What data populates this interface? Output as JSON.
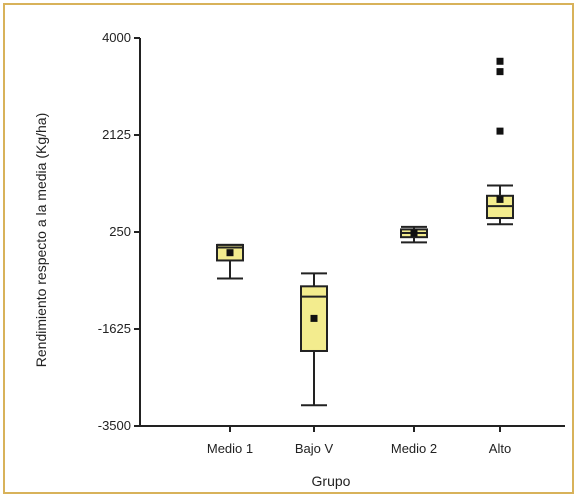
{
  "chart_data": {
    "type": "boxplot",
    "title": "",
    "xlabel": "Grupo",
    "ylabel": "Rendimiento respecto a la media (Kg/ha)",
    "ylim": [
      -3500,
      4000
    ],
    "yticks": [
      4000,
      2125,
      250,
      -1625,
      -3500
    ],
    "ytick_labels": [
      "4000",
      "2125",
      "250",
      "-1625",
      "-3500"
    ],
    "grid": false,
    "legend": "none",
    "box_fill": "#f3ec8e",
    "categories": [
      "Medio 1",
      "Bajo V",
      "Medio 2",
      "Alto"
    ],
    "boxes": [
      {
        "category": "Medio 1",
        "whisker_low": -650,
        "q1": -300,
        "median": -50,
        "q3": 0,
        "whisker_high": 0,
        "mean": -150,
        "outliers": []
      },
      {
        "category": "Bajo V",
        "whisker_low": -3100,
        "q1": -2050,
        "median": -1000,
        "q3": -800,
        "whisker_high": -550,
        "mean": -1420,
        "outliers": []
      },
      {
        "category": "Medio 2",
        "whisker_low": 50,
        "q1": 150,
        "median": 230,
        "q3": 300,
        "whisker_high": 350,
        "mean": 230,
        "outliers": []
      },
      {
        "category": "Alto",
        "whisker_low": 400,
        "q1": 520,
        "median": 750,
        "q3": 950,
        "whisker_high": 1150,
        "mean": 880,
        "outliers": [
          2200,
          3350,
          3550
        ]
      }
    ]
  }
}
